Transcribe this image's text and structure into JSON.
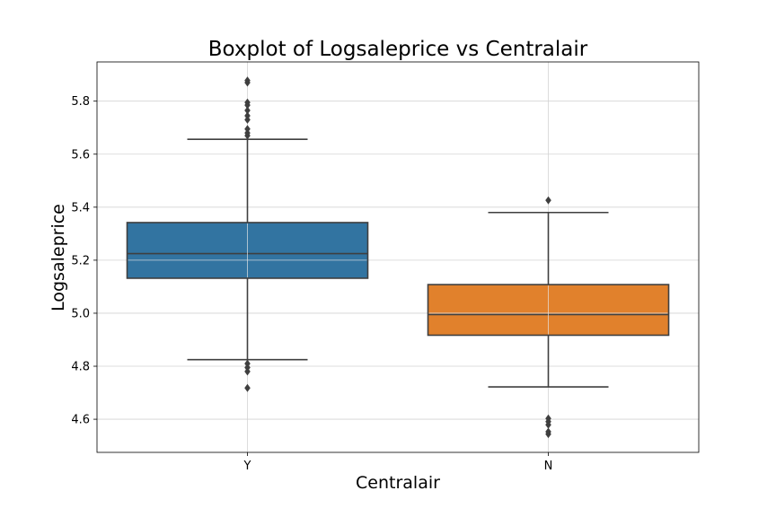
{
  "chart_data": {
    "type": "boxplot",
    "title": "Boxplot of Logsaleprice vs Centralair",
    "xlabel": "Centralair",
    "ylabel": "Logsaleprice",
    "ylim": [
      4.475,
      5.948
    ],
    "yticks": [
      4.6,
      4.8,
      5.0,
      5.2,
      5.4,
      5.6,
      5.8
    ],
    "ytick_labels": [
      "4.6",
      "4.8",
      "5.0",
      "5.2",
      "5.4",
      "5.6",
      "5.8"
    ],
    "grid": true,
    "categories": [
      "Y",
      "N"
    ],
    "boxes": [
      {
        "name": "Y",
        "color": "#3274a1",
        "whisker_low": 4.825,
        "q1": 5.132,
        "median": 5.225,
        "q3": 5.342,
        "whisker_high": 5.656,
        "outliers": [
          4.718,
          4.78,
          4.795,
          4.81,
          5.67,
          5.68,
          5.695,
          5.73,
          5.745,
          5.765,
          5.785,
          5.795,
          5.87,
          5.878
        ]
      },
      {
        "name": "N",
        "color": "#e1812c",
        "whisker_low": 4.722,
        "q1": 4.917,
        "median": 4.995,
        "q3": 5.108,
        "whisker_high": 5.38,
        "outliers": [
          4.544,
          4.553,
          4.579,
          4.591,
          4.603,
          5.426
        ]
      }
    ]
  }
}
